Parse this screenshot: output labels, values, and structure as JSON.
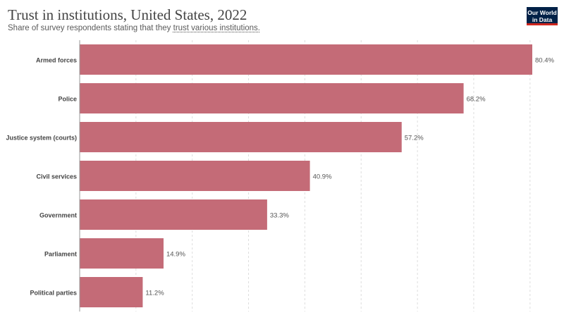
{
  "header": {
    "title": "Trust in institutions, United States, 2022",
    "subtitle_prefix": "Share of survey respondents stating that they ",
    "subtitle_link": "trust various institutions.",
    "logo_line1": "Our World",
    "logo_line2": "in Data"
  },
  "colors": {
    "bar": "#c46b77",
    "grid": "#dddddd",
    "axis": "#999999",
    "label": "#444444",
    "value_label": "#555555"
  },
  "chart_data": {
    "type": "bar",
    "orientation": "horizontal",
    "title": "Trust in institutions, United States, 2022",
    "subtitle": "Share of survey respondents stating that they trust various institutions.",
    "categories": [
      "Armed forces",
      "Police",
      "Justice system (courts)",
      "Civil services",
      "Government",
      "Parliament",
      "Political parties"
    ],
    "values": [
      80.4,
      68.2,
      57.2,
      40.9,
      33.3,
      14.9,
      11.2
    ],
    "value_labels": [
      "80.4%",
      "68.2%",
      "57.2%",
      "40.9%",
      "33.3%",
      "14.9%",
      "11.2%"
    ],
    "unit": "%",
    "xlim": [
      0,
      80.4
    ],
    "gridlines": [
      0,
      10,
      20,
      30,
      40,
      50,
      60,
      70,
      80
    ],
    "grid": true,
    "legend": "none"
  }
}
